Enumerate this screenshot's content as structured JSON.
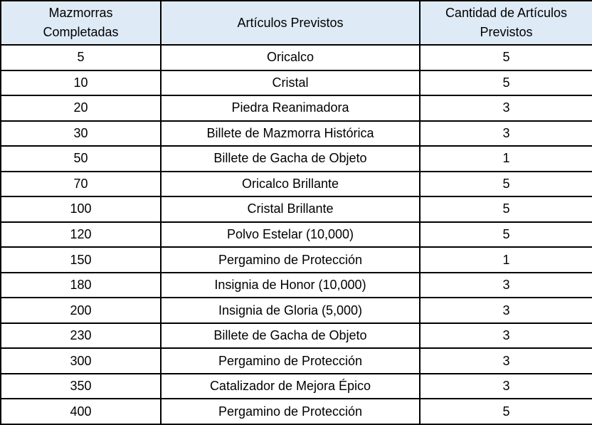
{
  "table": {
    "headers": [
      "Mazmorras Completadas",
      "Artículos Previstos",
      "Cantidad de Artículos Previstos"
    ],
    "rows": [
      [
        "5",
        "Oricalco",
        "5"
      ],
      [
        "10",
        "Cristal",
        "5"
      ],
      [
        "20",
        "Piedra Reanimadora",
        "3"
      ],
      [
        "30",
        "Billete de Mazmorra Histórica",
        "3"
      ],
      [
        "50",
        "Billete de Gacha de Objeto",
        "1"
      ],
      [
        "70",
        "Oricalco Brillante",
        "5"
      ],
      [
        "100",
        "Cristal Brillante",
        "5"
      ],
      [
        "120",
        "Polvo Estelar (10,000)",
        "5"
      ],
      [
        "150",
        "Pergamino de Protección",
        "1"
      ],
      [
        "180",
        "Insignia de Honor (10,000)",
        "3"
      ],
      [
        "200",
        "Insignia de Gloria (5,000)",
        "3"
      ],
      [
        "230",
        "Billete de Gacha de Objeto",
        "3"
      ],
      [
        "300",
        "Pergamino de Protección",
        "3"
      ],
      [
        "350",
        "Catalizador de Mejora Épico",
        "3"
      ],
      [
        "400",
        "Pergamino de Protección",
        "5"
      ]
    ]
  },
  "colors": {
    "header_background": "#DEEBF7",
    "border": "#000000",
    "text": "#000000",
    "row_background": "#FFFFFF"
  }
}
